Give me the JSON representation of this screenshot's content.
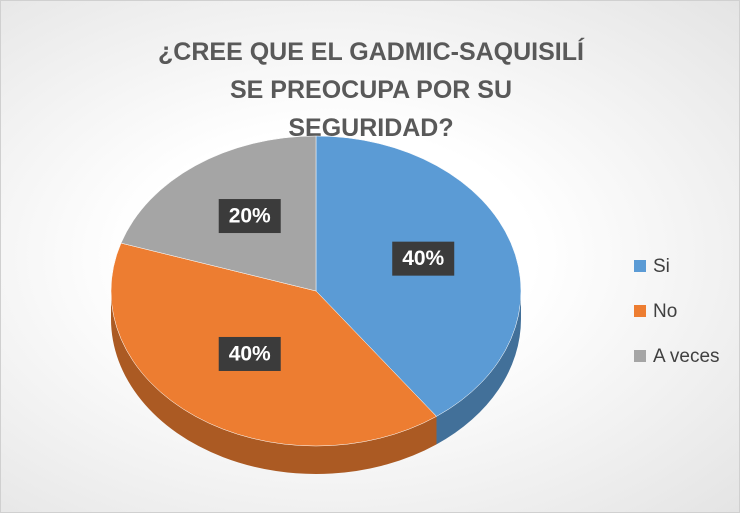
{
  "chart_data": {
    "type": "pie",
    "title": "¿CREE QUE EL GADMIC-SAQUISILÍ SE PREOCUPA POR SU SEGURIDAD?",
    "categories": [
      "Si",
      "No",
      "A veces"
    ],
    "values": [
      40,
      40,
      20
    ],
    "value_labels": [
      "40%",
      "40%",
      "20%"
    ],
    "colors": [
      "#5B9BD5",
      "#ED7D31",
      "#A5A5A5"
    ],
    "legend": "right"
  }
}
